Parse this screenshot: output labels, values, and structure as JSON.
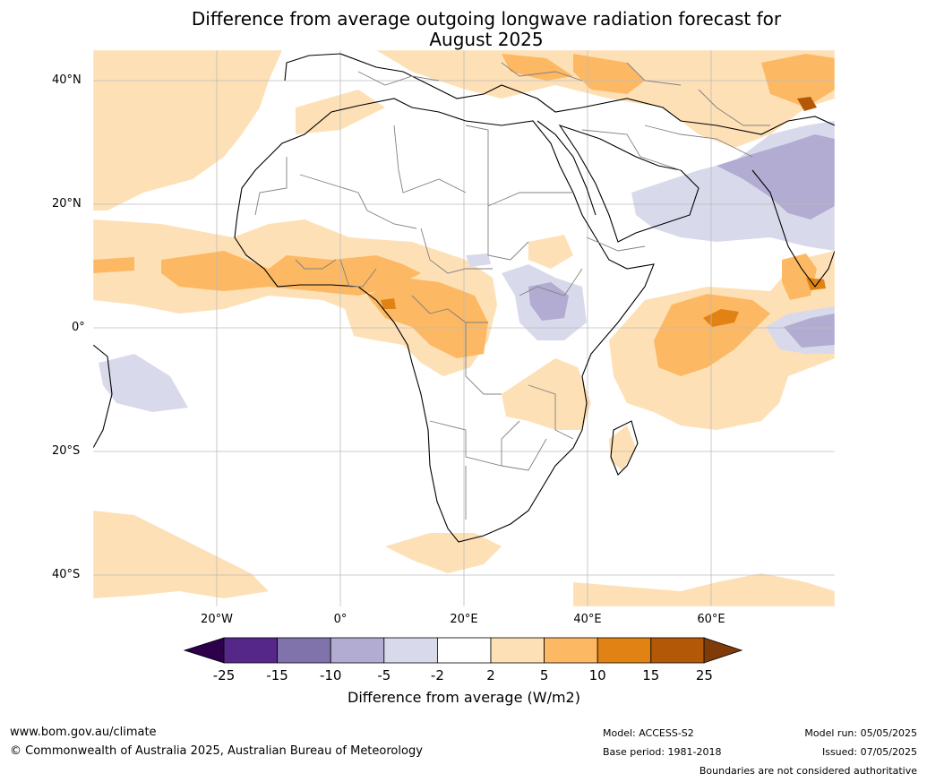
{
  "title_line1": "Difference from average outgoing longwave radiation forecast for",
  "title_line2": "August 2025",
  "lat_labels": [
    "40°N",
    "20°N",
    "0°",
    "20°S",
    "40°S"
  ],
  "lon_labels": [
    "20°W",
    "0°",
    "20°E",
    "40°E",
    "60°E"
  ],
  "colorbar": {
    "ticks": [
      "-25",
      "-15",
      "-10",
      "-5",
      "-2",
      "2",
      "5",
      "10",
      "15",
      "25"
    ],
    "colors": [
      "#2d004b",
      "#542788",
      "#8073ac",
      "#b2abd2",
      "#d8daeb",
      "#ffffff",
      "#fee0b6",
      "#fdb863",
      "#e08214",
      "#b35806",
      "#7f3b08"
    ],
    "title": "Difference from average (W/m2)"
  },
  "footer": {
    "website": "www.bom.gov.au/climate",
    "copyright": "© Commonwealth of Australia 2025, Australian Bureau of Meteorology",
    "model": "Model: ACCESS-S2",
    "base_period": "Base period: 1981-2018",
    "model_run": "Model run: 05/05/2025",
    "issued": "Issued: 07/05/2025",
    "disclaimer": "Boundaries are not considered authoritative"
  }
}
